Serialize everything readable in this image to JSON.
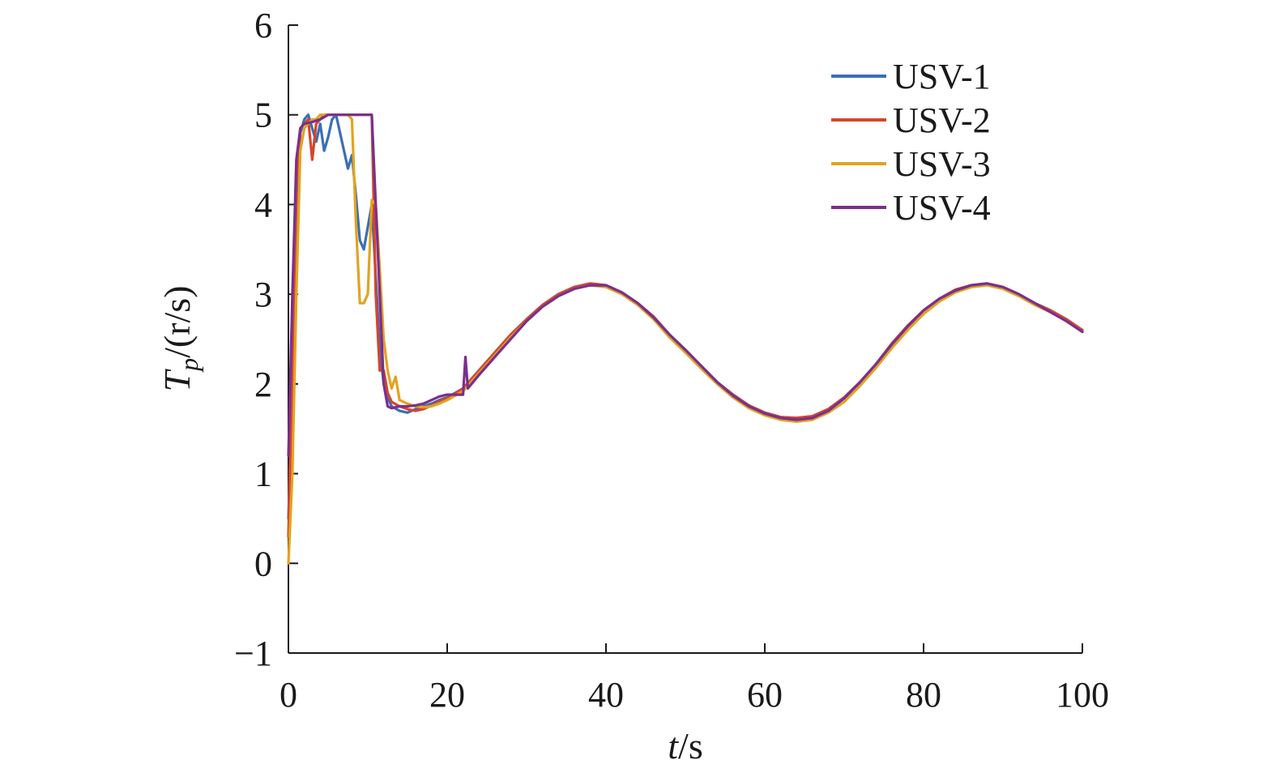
{
  "chart_data": {
    "type": "line",
    "title": "",
    "xlabel": {
      "italic": "t",
      "rest": "/s"
    },
    "ylabel": {
      "italic": "T",
      "sub": "p",
      "rest": "/(r/s)"
    },
    "xlim": [
      0,
      100
    ],
    "ylim": [
      -1,
      6
    ],
    "xticks": [
      0,
      20,
      40,
      60,
      80,
      100
    ],
    "yticks": [
      -1,
      0,
      1,
      2,
      3,
      4,
      5,
      6
    ],
    "xtick_labels": [
      "0",
      "20",
      "40",
      "60",
      "80",
      "100"
    ],
    "ytick_labels": [
      "−1",
      "0",
      "1",
      "2",
      "3",
      "4",
      "5",
      "6"
    ],
    "grid": false,
    "legend_position": "top-right",
    "series": [
      {
        "name": "USV-1",
        "color": "#3a6fb5",
        "x": [
          0,
          0.5,
          1,
          1.5,
          2,
          2.5,
          3,
          3.5,
          4,
          4.5,
          5,
          5.5,
          6,
          6.5,
          7,
          7.5,
          8,
          8.5,
          9,
          9.5,
          10,
          10.5,
          11,
          11.5,
          12,
          12.5,
          13,
          14,
          15,
          16,
          17,
          18,
          19,
          20,
          22,
          24,
          26,
          28,
          30,
          32,
          34,
          36,
          38,
          40,
          42,
          44,
          46,
          48,
          50,
          52,
          54,
          56,
          58,
          60,
          62,
          64,
          66,
          68,
          70,
          72,
          74,
          76,
          78,
          80,
          82,
          84,
          86,
          88,
          90,
          92,
          94,
          96,
          98,
          100
        ],
        "values": [
          0.5,
          2.0,
          4.0,
          4.8,
          4.95,
          5.0,
          4.85,
          4.7,
          4.9,
          4.6,
          4.75,
          4.95,
          5.0,
          4.8,
          4.6,
          4.4,
          4.55,
          4.1,
          3.6,
          3.5,
          3.75,
          4.0,
          3.2,
          2.4,
          2.0,
          1.85,
          1.75,
          1.7,
          1.68,
          1.72,
          1.75,
          1.78,
          1.82,
          1.85,
          1.95,
          2.15,
          2.35,
          2.55,
          2.72,
          2.88,
          3.0,
          3.08,
          3.12,
          3.1,
          3.02,
          2.9,
          2.75,
          2.55,
          2.38,
          2.2,
          2.02,
          1.88,
          1.76,
          1.68,
          1.63,
          1.62,
          1.64,
          1.72,
          1.85,
          2.02,
          2.22,
          2.45,
          2.65,
          2.82,
          2.95,
          3.05,
          3.1,
          3.12,
          3.08,
          3.0,
          2.9,
          2.82,
          2.72,
          2.6
        ]
      },
      {
        "name": "USV-2",
        "color": "#d4462a",
        "x": [
          0,
          0.5,
          1,
          1.5,
          2,
          2.5,
          3,
          3.5,
          4,
          4.5,
          5,
          5.5,
          6,
          7,
          8,
          9,
          10,
          10.5,
          11,
          11.5,
          12,
          12.5,
          13,
          14,
          15,
          16,
          17,
          18,
          19,
          20,
          22,
          24,
          26,
          28,
          30,
          32,
          34,
          36,
          38,
          40,
          42,
          44,
          46,
          48,
          50,
          52,
          54,
          56,
          58,
          60,
          62,
          64,
          66,
          68,
          70,
          72,
          74,
          76,
          78,
          80,
          82,
          84,
          86,
          88,
          90,
          92,
          94,
          96,
          98,
          100
        ],
        "values": [
          0.3,
          2.2,
          4.2,
          4.85,
          4.9,
          4.95,
          4.5,
          4.9,
          4.95,
          5.0,
          5.0,
          5.0,
          5.0,
          5.0,
          5.0,
          5.0,
          5.0,
          5.0,
          3.0,
          2.15,
          2.15,
          1.9,
          1.8,
          1.75,
          1.72,
          1.7,
          1.72,
          1.76,
          1.8,
          1.84,
          1.95,
          2.15,
          2.35,
          2.55,
          2.72,
          2.88,
          3.0,
          3.08,
          3.12,
          3.1,
          3.02,
          2.9,
          2.75,
          2.55,
          2.38,
          2.2,
          2.02,
          1.88,
          1.76,
          1.68,
          1.63,
          1.62,
          1.64,
          1.72,
          1.85,
          2.02,
          2.22,
          2.45,
          2.65,
          2.82,
          2.95,
          3.05,
          3.1,
          3.12,
          3.08,
          3.0,
          2.9,
          2.82,
          2.72,
          2.6
        ]
      },
      {
        "name": "USV-3",
        "color": "#e3a31f",
        "x": [
          0,
          0.5,
          1,
          1.5,
          2,
          2.5,
          3,
          3.5,
          4,
          5,
          6,
          7,
          7.5,
          8,
          8.5,
          9,
          9.5,
          10,
          10.5,
          11,
          11.5,
          12,
          12.5,
          13,
          13.5,
          14,
          15,
          16,
          17,
          18,
          19,
          20,
          22,
          24,
          26,
          28,
          30,
          32,
          34,
          36,
          38,
          40,
          42,
          44,
          46,
          48,
          50,
          52,
          54,
          56,
          58,
          60,
          62,
          64,
          66,
          68,
          70,
          72,
          74,
          76,
          78,
          80,
          82,
          84,
          86,
          88,
          90,
          92,
          94,
          96,
          98,
          100
        ],
        "values": [
          0.0,
          1.0,
          3.0,
          4.6,
          4.85,
          4.9,
          4.95,
          4.95,
          5.0,
          5.0,
          5.0,
          5.0,
          5.0,
          4.95,
          3.8,
          2.9,
          2.9,
          3.0,
          4.05,
          4.0,
          3.3,
          2.5,
          2.15,
          1.95,
          2.08,
          1.82,
          1.78,
          1.75,
          1.74,
          1.75,
          1.78,
          1.82,
          1.92,
          2.12,
          2.32,
          2.52,
          2.7,
          2.86,
          2.98,
          3.06,
          3.1,
          3.08,
          3.0,
          2.88,
          2.72,
          2.52,
          2.35,
          2.17,
          2.0,
          1.85,
          1.73,
          1.65,
          1.6,
          1.58,
          1.6,
          1.68,
          1.8,
          1.98,
          2.18,
          2.4,
          2.6,
          2.78,
          2.92,
          3.02,
          3.08,
          3.1,
          3.06,
          2.98,
          2.88,
          2.8,
          2.7,
          2.58
        ]
      },
      {
        "name": "USV-4",
        "color": "#7a2f8f",
        "x": [
          0,
          0.5,
          1,
          1.5,
          2,
          3,
          4,
          5,
          6,
          7,
          8,
          9,
          10,
          10.5,
          11,
          11.5,
          12,
          12.5,
          13,
          14,
          15,
          16,
          17,
          18,
          19,
          20,
          21,
          22,
          22.3,
          22.6,
          24,
          26,
          28,
          30,
          32,
          34,
          36,
          38,
          40,
          42,
          44,
          46,
          48,
          50,
          52,
          54,
          56,
          58,
          60,
          62,
          64,
          66,
          68,
          70,
          72,
          74,
          76,
          78,
          80,
          82,
          84,
          86,
          88,
          90,
          92,
          94,
          96,
          98,
          100
        ],
        "values": [
          1.2,
          3.0,
          4.5,
          4.85,
          4.9,
          4.92,
          4.95,
          5.0,
          5.0,
          5.0,
          5.0,
          5.0,
          5.0,
          5.0,
          4.0,
          3.0,
          2.0,
          1.75,
          1.73,
          1.75,
          1.75,
          1.76,
          1.78,
          1.82,
          1.86,
          1.88,
          1.88,
          1.88,
          2.3,
          1.95,
          2.1,
          2.3,
          2.5,
          2.7,
          2.86,
          2.98,
          3.06,
          3.1,
          3.1,
          3.02,
          2.9,
          2.74,
          2.55,
          2.38,
          2.2,
          2.02,
          1.87,
          1.75,
          1.67,
          1.62,
          1.6,
          1.62,
          1.7,
          1.84,
          2.02,
          2.22,
          2.44,
          2.64,
          2.82,
          2.95,
          3.04,
          3.1,
          3.12,
          3.08,
          3.0,
          2.9,
          2.8,
          2.7,
          2.58
        ]
      }
    ]
  }
}
